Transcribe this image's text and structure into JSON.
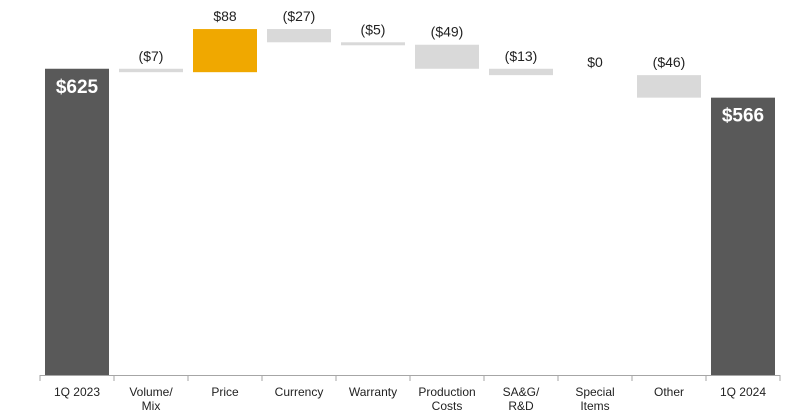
{
  "chart_data": {
    "type": "bar",
    "subtype": "waterfall",
    "categories": [
      [
        "1Q 2023"
      ],
      [
        "Volume/",
        "Mix"
      ],
      [
        "Price"
      ],
      [
        "Currency"
      ],
      [
        "Warranty"
      ],
      [
        "Production",
        "Costs"
      ],
      [
        "SA&G/",
        "R&D"
      ],
      [
        "Special",
        "Items"
      ],
      [
        "Other"
      ],
      [
        "1Q 2024"
      ]
    ],
    "values": [
      625,
      -7,
      88,
      -27,
      -5,
      -49,
      -13,
      0,
      -46,
      566
    ],
    "bar_kinds": [
      "total",
      "delta",
      "delta",
      "delta",
      "delta",
      "delta",
      "delta",
      "delta",
      "delta",
      "total"
    ],
    "data_labels": [
      "$625",
      "($7)",
      "$88",
      "($27)",
      "($5)",
      "($49)",
      "($13)",
      "$0",
      "($46)",
      "$566"
    ],
    "title": "",
    "xlabel": "",
    "ylabel": "",
    "grid": false,
    "legend": "none",
    "colors": {
      "total": "#595959",
      "increase": "#f0a800",
      "decrease": "#d9d9d9",
      "axis": "#a6a6a6"
    }
  }
}
